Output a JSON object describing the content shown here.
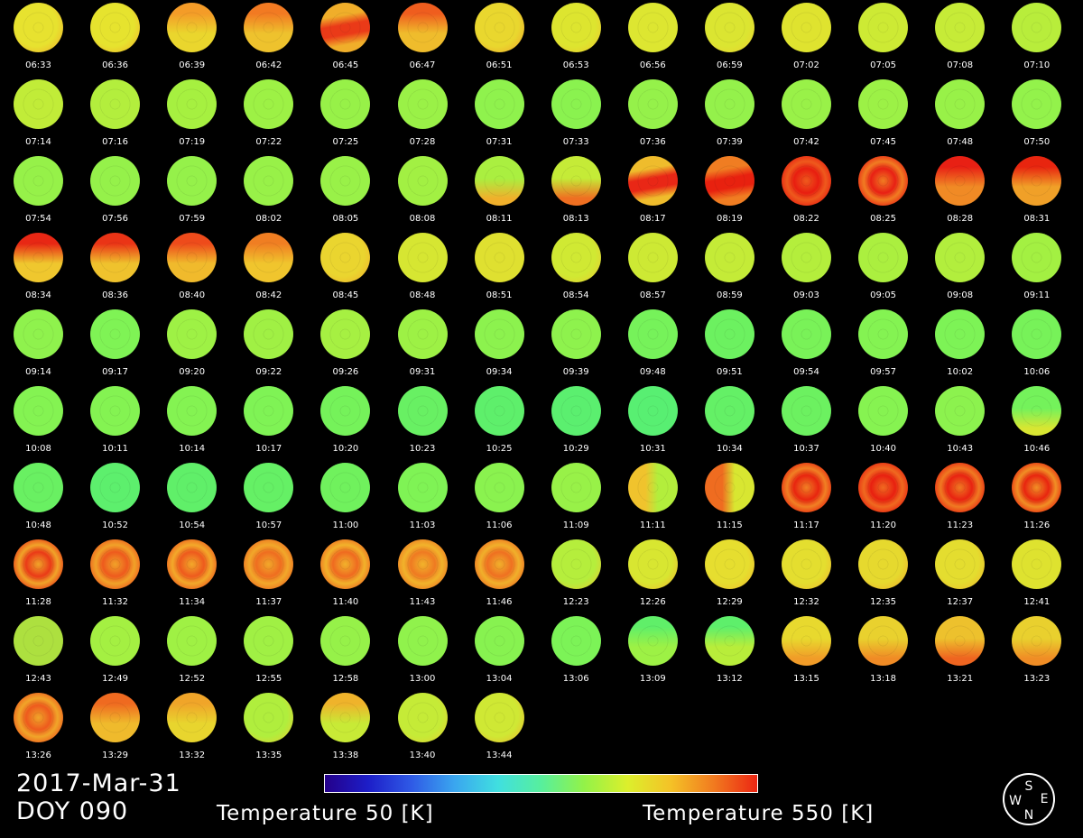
{
  "date_label": "2017-Mar-31",
  "doy_label": "DOY 090",
  "colorbar": {
    "min_label": "Temperature 50 [K]",
    "max_label": "Temperature 550 [K]",
    "min_value": 50,
    "max_value": 550,
    "unit": "K"
  },
  "compass": {
    "north": "N",
    "south": "S",
    "east": "E",
    "west": "W"
  },
  "frames": [
    {
      "time": "06:33",
      "base": "#e7e22f",
      "accent": "#f3a72a",
      "pattern": "none"
    },
    {
      "time": "06:36",
      "base": "#e6e32e",
      "accent": "#f2ad2a",
      "pattern": "none"
    },
    {
      "time": "06:39",
      "base": "#ead62d",
      "accent": "#f49c28",
      "pattern": "top"
    },
    {
      "time": "06:42",
      "base": "#eec22d",
      "accent": "#f27a22",
      "pattern": "top"
    },
    {
      "time": "06:45",
      "base": "#f0ae2a",
      "accent": "#ea3a18",
      "pattern": "band"
    },
    {
      "time": "06:47",
      "base": "#efbc2c",
      "accent": "#ef5d1e",
      "pattern": "top"
    },
    {
      "time": "06:51",
      "base": "#e9d72e",
      "accent": "#f1a12a",
      "pattern": "none"
    },
    {
      "time": "06:53",
      "base": "#dde52f",
      "accent": "#f0c52d",
      "pattern": "none"
    },
    {
      "time": "06:56",
      "base": "#dde631",
      "accent": "#dde631",
      "pattern": "none"
    },
    {
      "time": "06:59",
      "base": "#dbe531",
      "accent": "#eed02f",
      "pattern": "none"
    },
    {
      "time": "07:02",
      "base": "#dfe32f",
      "accent": "#dfe32f",
      "pattern": "none"
    },
    {
      "time": "07:05",
      "base": "#cdea34",
      "accent": "#cdea34",
      "pattern": "none"
    },
    {
      "time": "07:08",
      "base": "#c6eb37",
      "accent": "#c6eb37",
      "pattern": "none"
    },
    {
      "time": "07:10",
      "base": "#b8ed3b",
      "accent": "#b8ed3b",
      "pattern": "none"
    },
    {
      "time": "07:14",
      "base": "#c1ec38",
      "accent": "#c1ec38",
      "pattern": "none"
    },
    {
      "time": "07:16",
      "base": "#b3ee3d",
      "accent": "#b3ee3d",
      "pattern": "none"
    },
    {
      "time": "07:19",
      "base": "#a6f040",
      "accent": "#a6f040",
      "pattern": "none"
    },
    {
      "time": "07:22",
      "base": "#9df145",
      "accent": "#9df145",
      "pattern": "none"
    },
    {
      "time": "07:25",
      "base": "#97f148",
      "accent": "#97f148",
      "pattern": "none"
    },
    {
      "time": "07:28",
      "base": "#9af147",
      "accent": "#9af147",
      "pattern": "none"
    },
    {
      "time": "07:31",
      "base": "#8ff24d",
      "accent": "#8ff24d",
      "pattern": "none"
    },
    {
      "time": "07:33",
      "base": "#8af24f",
      "accent": "#8af24f",
      "pattern": "none"
    },
    {
      "time": "07:36",
      "base": "#95f14a",
      "accent": "#95f14a",
      "pattern": "none"
    },
    {
      "time": "07:39",
      "base": "#94f14b",
      "accent": "#94f14b",
      "pattern": "none"
    },
    {
      "time": "07:42",
      "base": "#99f148",
      "accent": "#99f148",
      "pattern": "none"
    },
    {
      "time": "07:45",
      "base": "#9cf146",
      "accent": "#9cf146",
      "pattern": "none"
    },
    {
      "time": "07:48",
      "base": "#98f148",
      "accent": "#98f148",
      "pattern": "none"
    },
    {
      "time": "07:50",
      "base": "#93f24b",
      "accent": "#93f24b",
      "pattern": "none"
    },
    {
      "time": "07:54",
      "base": "#96f149",
      "accent": "#96f149",
      "pattern": "none"
    },
    {
      "time": "07:56",
      "base": "#95f14a",
      "accent": "#95f14a",
      "pattern": "none"
    },
    {
      "time": "07:59",
      "base": "#95f14a",
      "accent": "#95f14a",
      "pattern": "none"
    },
    {
      "time": "08:02",
      "base": "#98f148",
      "accent": "#98f148",
      "pattern": "none"
    },
    {
      "time": "08:05",
      "base": "#99f148",
      "accent": "#99f148",
      "pattern": "none"
    },
    {
      "time": "08:08",
      "base": "#a2f043",
      "accent": "#a2f043",
      "pattern": "none"
    },
    {
      "time": "08:11",
      "base": "#aaef40",
      "accent": "#f0b02b",
      "pattern": "bottom"
    },
    {
      "time": "08:13",
      "base": "#c5eb37",
      "accent": "#ef6f21",
      "pattern": "bottom"
    },
    {
      "time": "08:17",
      "base": "#efbc2c",
      "accent": "#e92716",
      "pattern": "band"
    },
    {
      "time": "08:19",
      "base": "#f07d22",
      "accent": "#e8210f",
      "pattern": "band"
    },
    {
      "time": "08:22",
      "base": "#ee5a1d",
      "accent": "#e81e10",
      "pattern": "full"
    },
    {
      "time": "08:25",
      "base": "#f07c22",
      "accent": "#e82014",
      "pattern": "full"
    },
    {
      "time": "08:28",
      "base": "#f08a25",
      "accent": "#e82014",
      "pattern": "top"
    },
    {
      "time": "08:31",
      "base": "#f0a028",
      "accent": "#e8250f",
      "pattern": "top"
    },
    {
      "time": "08:34",
      "base": "#efc72e",
      "accent": "#e82714",
      "pattern": "top"
    },
    {
      "time": "08:36",
      "base": "#efc22d",
      "accent": "#ea3416",
      "pattern": "top"
    },
    {
      "time": "08:40",
      "base": "#f0ba2c",
      "accent": "#ee4b1b",
      "pattern": "top"
    },
    {
      "time": "08:42",
      "base": "#f0c52d",
      "accent": "#f07e22",
      "pattern": "top"
    },
    {
      "time": "08:45",
      "base": "#ead52f",
      "accent": "#f2aa2a",
      "pattern": "none"
    },
    {
      "time": "08:48",
      "base": "#d6e632",
      "accent": "#d6e632",
      "pattern": "none"
    },
    {
      "time": "08:51",
      "base": "#dfe030",
      "accent": "#dfe030",
      "pattern": "none"
    },
    {
      "time": "08:54",
      "base": "#d0e933",
      "accent": "#ecc82e",
      "pattern": "none"
    },
    {
      "time": "08:57",
      "base": "#cde934",
      "accent": "#cde934",
      "pattern": "none"
    },
    {
      "time": "08:59",
      "base": "#c4eb37",
      "accent": "#c4eb37",
      "pattern": "none"
    },
    {
      "time": "09:03",
      "base": "#b4ee3c",
      "accent": "#b4ee3c",
      "pattern": "none"
    },
    {
      "time": "09:05",
      "base": "#abef3f",
      "accent": "#abef3f",
      "pattern": "none"
    },
    {
      "time": "09:08",
      "base": "#b2ee3d",
      "accent": "#b2ee3d",
      "pattern": "none"
    },
    {
      "time": "09:11",
      "base": "#a3f042",
      "accent": "#a3f042",
      "pattern": "none"
    },
    {
      "time": "09:14",
      "base": "#8ff24d",
      "accent": "#8ff24d",
      "pattern": "none"
    },
    {
      "time": "09:17",
      "base": "#7ff355",
      "accent": "#7ff355",
      "pattern": "none"
    },
    {
      "time": "09:20",
      "base": "#9ef145",
      "accent": "#9ef145",
      "pattern": "none"
    },
    {
      "time": "09:22",
      "base": "#a0f044",
      "accent": "#a0f044",
      "pattern": "none"
    },
    {
      "time": "09:26",
      "base": "#a6f042",
      "accent": "#a6f042",
      "pattern": "none"
    },
    {
      "time": "09:31",
      "base": "#9df145",
      "accent": "#9df145",
      "pattern": "none"
    },
    {
      "time": "09:34",
      "base": "#8cf24e",
      "accent": "#8cf24e",
      "pattern": "none"
    },
    {
      "time": "09:39",
      "base": "#8ef24d",
      "accent": "#8ef24d",
      "pattern": "none"
    },
    {
      "time": "09:48",
      "base": "#76f25a",
      "accent": "#76f25a",
      "pattern": "none"
    },
    {
      "time": "09:51",
      "base": "#6cf160",
      "accent": "#6cf160",
      "pattern": "none"
    },
    {
      "time": "09:54",
      "base": "#79f258",
      "accent": "#79f258",
      "pattern": "none"
    },
    {
      "time": "09:57",
      "base": "#84f352",
      "accent": "#84f352",
      "pattern": "none"
    },
    {
      "time": "10:02",
      "base": "#7df356",
      "accent": "#7df356",
      "pattern": "none"
    },
    {
      "time": "10:06",
      "base": "#77f259",
      "accent": "#77f259",
      "pattern": "none"
    },
    {
      "time": "10:08",
      "base": "#84f352",
      "accent": "#84f352",
      "pattern": "none"
    },
    {
      "time": "10:11",
      "base": "#84f352",
      "accent": "#84f352",
      "pattern": "none"
    },
    {
      "time": "10:14",
      "base": "#84f352",
      "accent": "#84f352",
      "pattern": "none"
    },
    {
      "time": "10:17",
      "base": "#7ff355",
      "accent": "#7ff355",
      "pattern": "none"
    },
    {
      "time": "10:20",
      "base": "#75f25a",
      "accent": "#75f25a",
      "pattern": "none"
    },
    {
      "time": "10:23",
      "base": "#68f063",
      "accent": "#68f063",
      "pattern": "none"
    },
    {
      "time": "10:25",
      "base": "#5eef6b",
      "accent": "#5eef6b",
      "pattern": "none"
    },
    {
      "time": "10:29",
      "base": "#5bef6f",
      "accent": "#5bef6f",
      "pattern": "none"
    },
    {
      "time": "10:31",
      "base": "#58ef72",
      "accent": "#58ef72",
      "pattern": "none"
    },
    {
      "time": "10:34",
      "base": "#64f066",
      "accent": "#64f066",
      "pattern": "none"
    },
    {
      "time": "10:37",
      "base": "#6cf160",
      "accent": "#6cf160",
      "pattern": "none"
    },
    {
      "time": "10:40",
      "base": "#86f351",
      "accent": "#86f351",
      "pattern": "none"
    },
    {
      "time": "10:43",
      "base": "#8cf24e",
      "accent": "#8cf24e",
      "pattern": "none"
    },
    {
      "time": "10:46",
      "base": "#74f25b",
      "accent": "#d8e632",
      "pattern": "bottom"
    },
    {
      "time": "10:48",
      "base": "#69f062",
      "accent": "#69f062",
      "pattern": "none"
    },
    {
      "time": "10:52",
      "base": "#5def6d",
      "accent": "#5def6d",
      "pattern": "none"
    },
    {
      "time": "10:54",
      "base": "#60ef69",
      "accent": "#60ef69",
      "pattern": "none"
    },
    {
      "time": "10:57",
      "base": "#65f065",
      "accent": "#65f065",
      "pattern": "none"
    },
    {
      "time": "11:00",
      "base": "#70f15d",
      "accent": "#70f15d",
      "pattern": "none"
    },
    {
      "time": "11:03",
      "base": "#7ff355",
      "accent": "#7ff355",
      "pattern": "none"
    },
    {
      "time": "11:06",
      "base": "#8af24f",
      "accent": "#8af24f",
      "pattern": "none"
    },
    {
      "time": "11:09",
      "base": "#98f148",
      "accent": "#98f148",
      "pattern": "none"
    },
    {
      "time": "11:11",
      "base": "#b3ee3c",
      "accent": "#f0c32d",
      "pattern": "left"
    },
    {
      "time": "11:15",
      "base": "#d8e631",
      "accent": "#ef6c20",
      "pattern": "left"
    },
    {
      "time": "11:17",
      "base": "#f08024",
      "accent": "#e8250f",
      "pattern": "full"
    },
    {
      "time": "11:20",
      "base": "#ef6a20",
      "accent": "#e82010",
      "pattern": "full"
    },
    {
      "time": "11:23",
      "base": "#ef7a22",
      "accent": "#e82311",
      "pattern": "full"
    },
    {
      "time": "11:26",
      "base": "#f08f25",
      "accent": "#e8250f",
      "pattern": "full"
    },
    {
      "time": "11:28",
      "base": "#f0a429",
      "accent": "#ea3a17",
      "pattern": "full"
    },
    {
      "time": "11:32",
      "base": "#f0a229",
      "accent": "#ee5a1d",
      "pattern": "full"
    },
    {
      "time": "11:34",
      "base": "#f2a92a",
      "accent": "#ee5a1d",
      "pattern": "full"
    },
    {
      "time": "11:37",
      "base": "#f1a82a",
      "accent": "#ef6d20",
      "pattern": "full"
    },
    {
      "time": "11:40",
      "base": "#f1b22b",
      "accent": "#ef6a20",
      "pattern": "full"
    },
    {
      "time": "11:43",
      "base": "#f1b32b",
      "accent": "#ef7a22",
      "pattern": "full"
    },
    {
      "time": "11:46",
      "base": "#f0b02b",
      "accent": "#ef7021",
      "pattern": "full"
    },
    {
      "time": "12:23",
      "base": "#b5ee3c",
      "accent": "#efc52d",
      "pattern": "none"
    },
    {
      "time": "12:26",
      "base": "#d8e631",
      "accent": "#f0b22b",
      "pattern": "none"
    },
    {
      "time": "12:29",
      "base": "#e6de2f",
      "accent": "#f1b52b",
      "pattern": "none"
    },
    {
      "time": "12:32",
      "base": "#e4de2f",
      "accent": "#f1b32b",
      "pattern": "none"
    },
    {
      "time": "12:35",
      "base": "#e6d92e",
      "accent": "#f0a729",
      "pattern": "none"
    },
    {
      "time": "12:37",
      "base": "#e4dd2f",
      "accent": "#f0b22b",
      "pattern": "none"
    },
    {
      "time": "12:41",
      "base": "#dee22f",
      "accent": "#dee22f",
      "pattern": "none"
    },
    {
      "time": "12:43",
      "base": "#ade03f",
      "accent": "#ade03f",
      "pattern": "none"
    },
    {
      "time": "12:49",
      "base": "#a4f042",
      "accent": "#a4f042",
      "pattern": "none"
    },
    {
      "time": "12:52",
      "base": "#9ff144",
      "accent": "#9ff144",
      "pattern": "none"
    },
    {
      "time": "12:55",
      "base": "#a0f044",
      "accent": "#a0f044",
      "pattern": "none"
    },
    {
      "time": "12:58",
      "base": "#96f149",
      "accent": "#96f149",
      "pattern": "none"
    },
    {
      "time": "13:00",
      "base": "#90f24c",
      "accent": "#90f24c",
      "pattern": "none"
    },
    {
      "time": "13:04",
      "base": "#87f250",
      "accent": "#87f250",
      "pattern": "none"
    },
    {
      "time": "13:06",
      "base": "#7cf357",
      "accent": "#7cf357",
      "pattern": "none"
    },
    {
      "time": "13:09",
      "base": "#9df145",
      "accent": "#60ef69",
      "pattern": "top"
    },
    {
      "time": "13:12",
      "base": "#b8ed3a",
      "accent": "#5eef6b",
      "pattern": "top"
    },
    {
      "time": "13:15",
      "base": "#e8d92e",
      "accent": "#f19c28",
      "pattern": "bottom"
    },
    {
      "time": "13:18",
      "base": "#e9d12e",
      "accent": "#f08b25",
      "pattern": "bottom"
    },
    {
      "time": "13:21",
      "base": "#edc12d",
      "accent": "#ef6520",
      "pattern": "bottom"
    },
    {
      "time": "13:23",
      "base": "#e9d02e",
      "accent": "#f08d25",
      "pattern": "bottom"
    },
    {
      "time": "13:26",
      "base": "#f0a529",
      "accent": "#ee5a1d",
      "pattern": "full"
    },
    {
      "time": "13:29",
      "base": "#efba2c",
      "accent": "#ef6a20",
      "pattern": "top"
    },
    {
      "time": "13:32",
      "base": "#e8d52e",
      "accent": "#f0a529",
      "pattern": "top"
    },
    {
      "time": "13:35",
      "base": "#b0ee3d",
      "accent": "#eecb2e",
      "pattern": "none"
    },
    {
      "time": "13:38",
      "base": "#c8ea36",
      "accent": "#efb32b",
      "pattern": "top"
    },
    {
      "time": "13:40",
      "base": "#c5eb37",
      "accent": "#e8cf2e",
      "pattern": "none"
    },
    {
      "time": "13:44",
      "base": "#cfe834",
      "accent": "#f0b42b",
      "pattern": "none"
    }
  ]
}
